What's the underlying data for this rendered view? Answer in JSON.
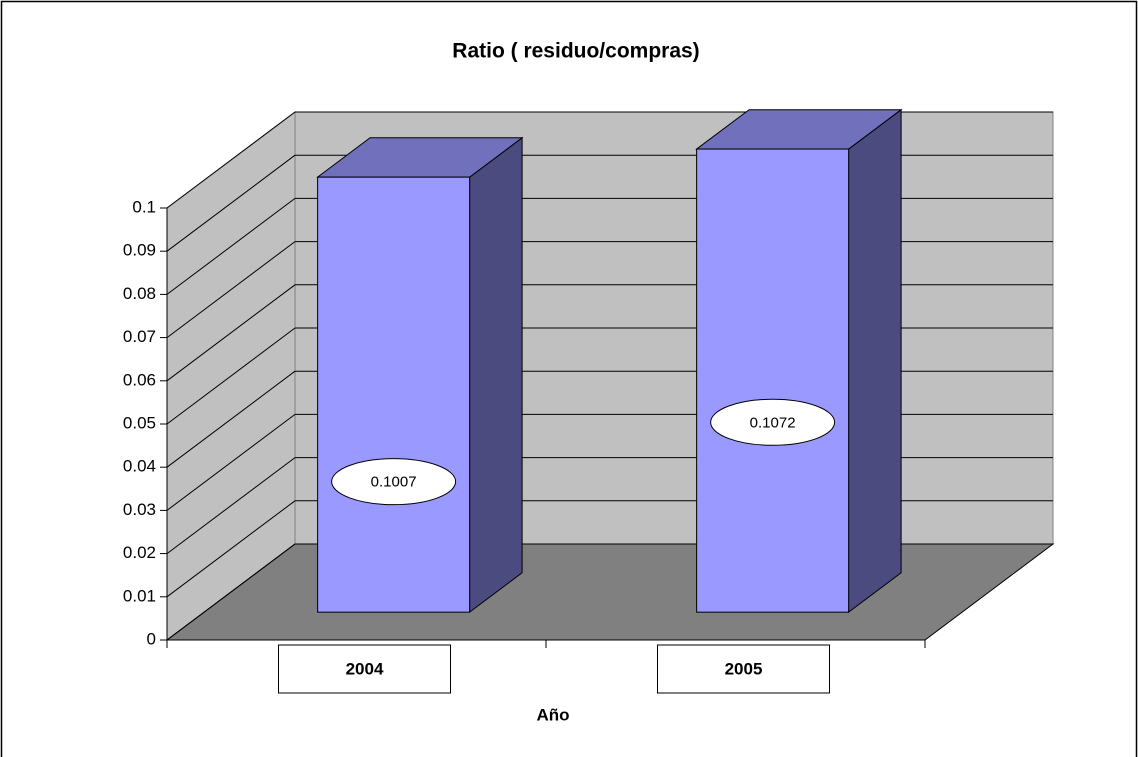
{
  "chart_data": {
    "type": "bar3d",
    "title": "Ratio ( residuo/compras)",
    "x_label": "Año",
    "categories": [
      "2004",
      "2005"
    ],
    "values": [
      0.1007,
      0.1072
    ],
    "color": "#9999ff",
    "ylim": [
      0,
      0.1
    ],
    "yticks": [
      0,
      0.01,
      0.02,
      0.03,
      0.04,
      0.05,
      0.06,
      0.07,
      0.08,
      0.09,
      0.1
    ],
    "grid": true
  }
}
